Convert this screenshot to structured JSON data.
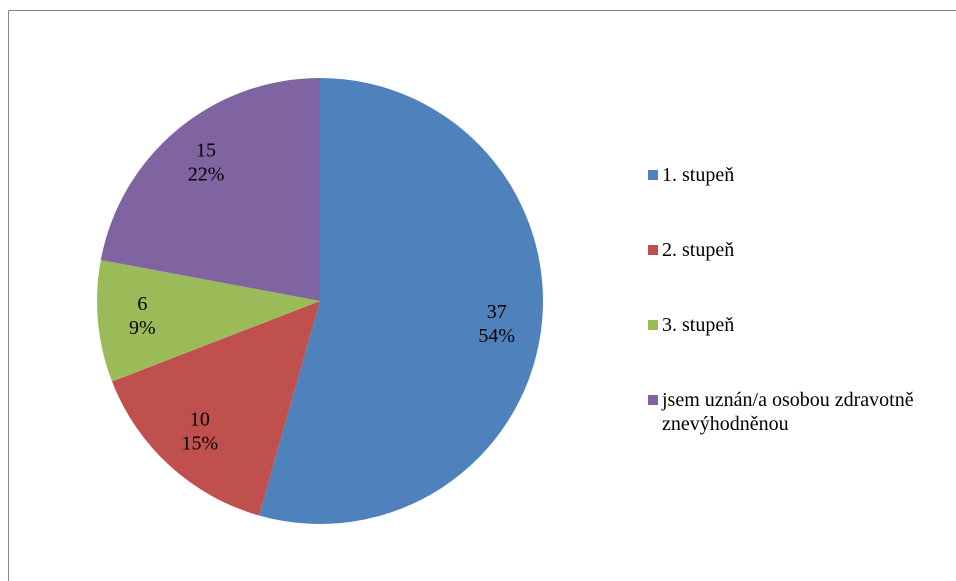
{
  "chart_data": {
    "type": "pie",
    "categories": [
      "1. stupeň",
      "2. stupeň",
      "3. stupeň",
      "jsem uznán/a osobou zdravotně znevýhodněnou"
    ],
    "values": [
      37,
      10,
      6,
      15
    ],
    "percent_labels": [
      "54%",
      "15%",
      "9%",
      "22%"
    ],
    "colors": [
      "#4f81bd",
      "#c0504d",
      "#9bbb59",
      "#8064a2"
    ],
    "legend": "right"
  }
}
